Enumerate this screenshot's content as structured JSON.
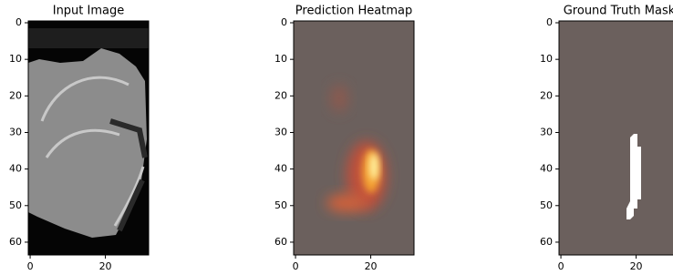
{
  "chart_data": [
    {
      "type": "image",
      "title": "Input Image",
      "xlim": [
        -0.5,
        31.5
      ],
      "ylim": [
        63.5,
        -0.5
      ],
      "xticks": [
        0,
        20
      ],
      "yticks": [
        0,
        10,
        20,
        30,
        40,
        50,
        60
      ]
    },
    {
      "type": "image",
      "title": "Prediction Heatmap",
      "xlim": [
        -0.5,
        31.5
      ],
      "ylim": [
        63.5,
        -0.5
      ],
      "xticks": [
        0,
        20
      ],
      "yticks": [
        0,
        10,
        20,
        30,
        40,
        50,
        60
      ]
    },
    {
      "type": "image",
      "title": "Ground Truth Mask",
      "xlim": [
        -0.5,
        31.5
      ],
      "ylim": [
        63.5,
        -0.5
      ],
      "xticks": [
        0,
        20
      ],
      "yticks": [
        0,
        10,
        20,
        30,
        40,
        50,
        60
      ]
    }
  ]
}
